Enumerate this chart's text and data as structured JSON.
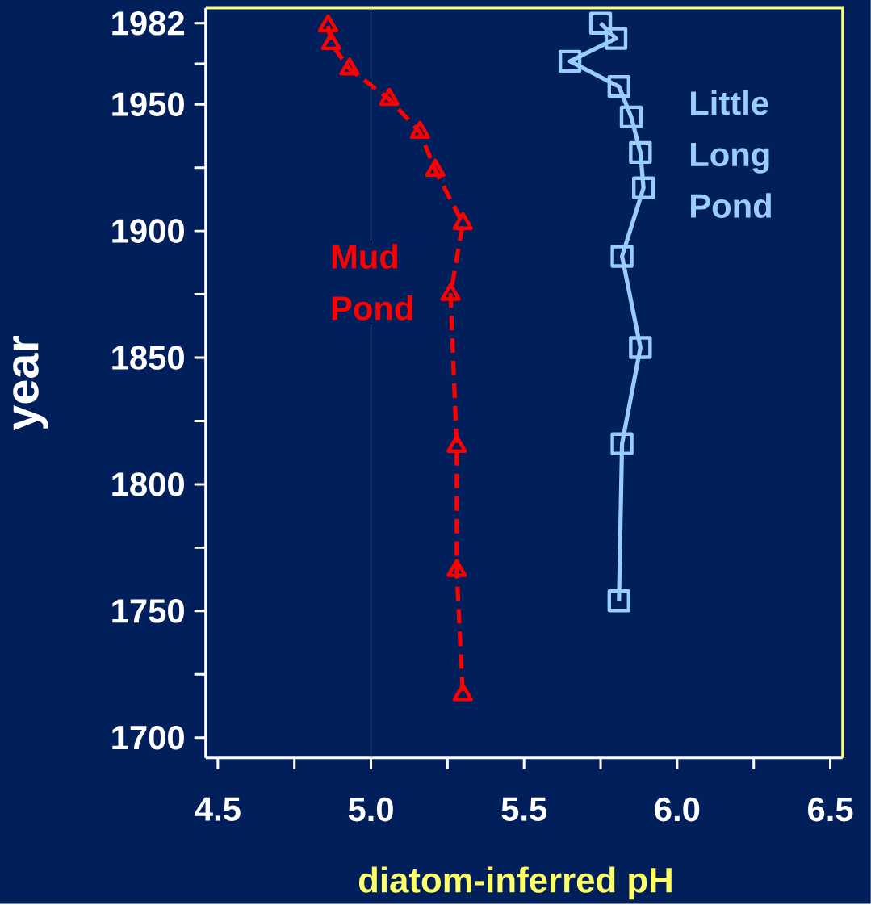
{
  "chart_data": {
    "type": "line",
    "xlabel": "diatom-inferred pH",
    "ylabel": "year",
    "xlim": [
      4.46,
      6.54
    ],
    "ylim": [
      1692,
      1988
    ],
    "xticks": [
      4.5,
      {
        "value": 4.75,
        "label": null
      },
      {
        "value": 5.0,
        "label": "5.0"
      },
      {
        "value": 5.25,
        "label": null
      },
      5.5,
      {
        "value": 5.75,
        "label": null
      },
      {
        "value": 6.0,
        "label": "6.0"
      },
      {
        "value": 6.25,
        "label": null
      },
      6.5
    ],
    "yticks": [
      1700,
      {
        "value": 1725,
        "label": null
      },
      1750,
      {
        "value": 1775,
        "label": null
      },
      1800,
      {
        "value": 1825,
        "label": null
      },
      1850,
      {
        "value": 1875,
        "label": null
      },
      1900,
      {
        "value": 1925,
        "label": null
      },
      1950,
      {
        "value": 1966,
        "label": null
      },
      1982
    ],
    "ref_lines": [
      {
        "axis": "x",
        "value": 5.0,
        "color": "#8090b0"
      }
    ],
    "series": [
      {
        "name": "Mud Pond",
        "color": "#ff0000",
        "marker": "triangle",
        "line_style": "dashed",
        "x": [
          4.86,
          4.87,
          4.93,
          5.06,
          5.16,
          5.21,
          5.3,
          5.26,
          5.28,
          5.28,
          5.3
        ],
        "values": [
          1981,
          1974,
          1964,
          1952,
          1939,
          1924,
          1903,
          1875,
          1815,
          1766,
          1717
        ]
      },
      {
        "name": "Little Long Pond",
        "color": "#99ccff",
        "marker": "square",
        "line_style": "solid",
        "x": [
          5.75,
          5.8,
          5.65,
          5.81,
          5.85,
          5.88,
          5.89,
          5.82,
          5.88,
          5.82,
          5.81
        ],
        "values": [
          1982,
          1976,
          1967,
          1957,
          1945,
          1931,
          1917,
          1890,
          1854,
          1816,
          1754
        ]
      }
    ]
  }
}
